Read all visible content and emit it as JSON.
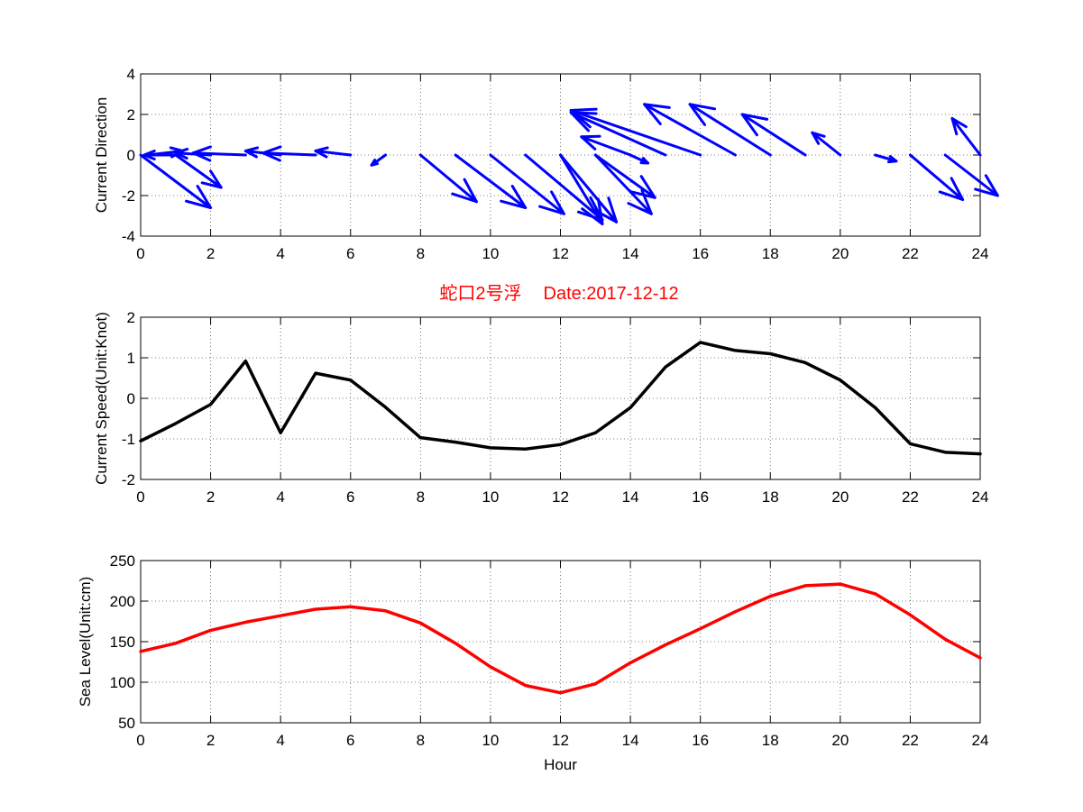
{
  "chart_data": [
    {
      "type": "quiver",
      "ylabel": "Current Direction",
      "xlim": [
        0,
        24
      ],
      "ylim": [
        -4,
        4
      ],
      "xticks": [
        0,
        2,
        4,
        6,
        8,
        10,
        12,
        14,
        16,
        18,
        20,
        22,
        24
      ],
      "yticks": [
        -4,
        -2,
        0,
        2,
        4
      ],
      "color": "#0000ff",
      "grid": true,
      "arrows": [
        {
          "x": 0,
          "u": 2.0,
          "v": -2.6
        },
        {
          "x": 0.2,
          "u": 1.0,
          "v": 0.2
        },
        {
          "x": 1,
          "u": 1.3,
          "v": -1.6
        },
        {
          "x": 1,
          "u": -0.9,
          "v": 0.0
        },
        {
          "x": 2,
          "u": -1.0,
          "v": 0.1
        },
        {
          "x": 3,
          "u": -1.5,
          "v": 0.1
        },
        {
          "x": 4,
          "u": -1.0,
          "v": 0.2
        },
        {
          "x": 5,
          "u": -1.5,
          "v": 0.1
        },
        {
          "x": 6,
          "u": -1.0,
          "v": 0.2
        },
        {
          "x": 7,
          "u": -0.4,
          "v": -0.5
        },
        {
          "x": 8,
          "u": 1.6,
          "v": -2.3
        },
        {
          "x": 9,
          "u": 2.0,
          "v": -2.6
        },
        {
          "x": 10,
          "u": 2.1,
          "v": -2.9
        },
        {
          "x": 11,
          "u": 2.2,
          "v": -3.2
        },
        {
          "x": 12,
          "u": 1.2,
          "v": -3.4
        },
        {
          "x": 12,
          "u": 1.6,
          "v": -3.3
        },
        {
          "x": 13,
          "u": 1.6,
          "v": -2.9
        },
        {
          "x": 13,
          "u": 1.7,
          "v": -2.1
        },
        {
          "x": 14,
          "u": -1.4,
          "v": 0.9
        },
        {
          "x": 14,
          "u": 0.5,
          "v": -0.4
        },
        {
          "x": 15,
          "u": -2.7,
          "v": 2.1
        },
        {
          "x": 16,
          "u": -3.7,
          "v": 2.2
        },
        {
          "x": 17,
          "u": -2.6,
          "v": 2.5
        },
        {
          "x": 18,
          "u": -2.3,
          "v": 2.5
        },
        {
          "x": 19,
          "u": -1.8,
          "v": 2.0
        },
        {
          "x": 20,
          "u": -0.8,
          "v": 1.1
        },
        {
          "x": 21,
          "u": 0.6,
          "v": -0.3
        },
        {
          "x": 22,
          "u": 1.5,
          "v": -2.2
        },
        {
          "x": 23,
          "u": 1.5,
          "v": -2.0
        },
        {
          "x": 24,
          "u": -0.8,
          "v": 1.8
        }
      ]
    },
    {
      "type": "line",
      "title_left": "蛇口2号浮",
      "title_right": "Date:2017-12-12",
      "title_color": "#ff0000",
      "ylabel": "Current Speed(Unit:Knot)",
      "xlim": [
        0,
        24
      ],
      "ylim": [
        -2,
        2
      ],
      "xticks": [
        0,
        2,
        4,
        6,
        8,
        10,
        12,
        14,
        16,
        18,
        20,
        22,
        24
      ],
      "yticks": [
        -2,
        -1,
        0,
        1,
        2
      ],
      "grid": true,
      "series": [
        {
          "color": "#000000",
          "x": [
            0,
            1,
            2,
            3,
            4,
            5,
            6,
            7,
            8,
            9,
            10,
            11,
            12,
            13,
            14,
            15,
            16,
            17,
            18,
            19,
            20,
            21,
            22,
            23,
            24
          ],
          "y": [
            -1.05,
            -0.62,
            -0.15,
            0.92,
            -0.85,
            0.62,
            0.45,
            -0.22,
            -0.97,
            -1.08,
            -1.22,
            -1.25,
            -1.14,
            -0.85,
            -0.23,
            0.77,
            1.38,
            1.18,
            1.1,
            0.88,
            0.45,
            -0.23,
            -1.12,
            -1.33,
            -1.37
          ]
        }
      ]
    },
    {
      "type": "line",
      "xlabel": "Hour",
      "ylabel": "Sea Level(Unit:cm)",
      "xlim": [
        0,
        24
      ],
      "ylim": [
        50,
        250
      ],
      "xticks": [
        0,
        2,
        4,
        6,
        8,
        10,
        12,
        14,
        16,
        18,
        20,
        22,
        24
      ],
      "yticks": [
        50,
        100,
        150,
        200,
        250
      ],
      "grid": true,
      "series": [
        {
          "color": "#ff0000",
          "x": [
            0,
            1,
            2,
            3,
            4,
            5,
            6,
            7,
            8,
            9,
            10,
            11,
            12,
            13,
            14,
            15,
            16,
            17,
            18,
            19,
            20,
            21,
            22,
            23,
            24
          ],
          "y": [
            138,
            148,
            164,
            174,
            182,
            190,
            193,
            188,
            173,
            148,
            119,
            96,
            87,
            98,
            124,
            146,
            166,
            187,
            206,
            219,
            221,
            209,
            183,
            153,
            130
          ]
        }
      ]
    }
  ]
}
